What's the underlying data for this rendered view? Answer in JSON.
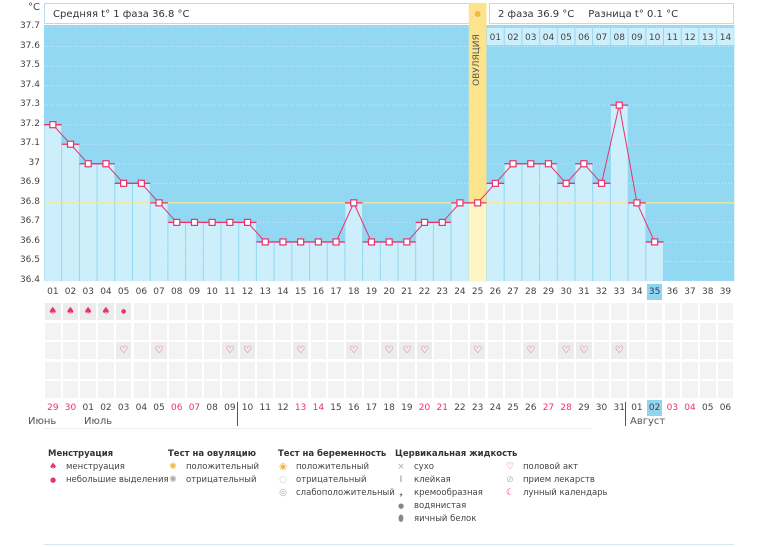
{
  "header": {
    "unit": "°C",
    "phase1": "Средняя t° 1 фаза 36.8 °C",
    "phase2": "2 фаза 36.9 °C",
    "difference": "Разница t° 0.1 °C",
    "ovulation_label": "ОВУЛЯЦИЯ"
  },
  "chart_data": {
    "type": "line",
    "y_ticks": [
      "37.7",
      "37.6",
      "37.5",
      "37.4",
      "37.3",
      "37.2",
      "37.1",
      "37",
      "36.9",
      "36.8",
      "36.7",
      "36.6",
      "36.5",
      "36.4"
    ],
    "ylim": [
      36.4,
      37.7
    ],
    "cycle_days": [
      "01",
      "02",
      "03",
      "04",
      "05",
      "06",
      "07",
      "08",
      "09",
      "10",
      "11",
      "12",
      "13",
      "14",
      "15",
      "16",
      "17",
      "18",
      "19",
      "20",
      "21",
      "22",
      "23",
      "24",
      "25",
      "26",
      "27",
      "28",
      "29",
      "30",
      "31",
      "32",
      "33",
      "34",
      "35",
      "36",
      "37",
      "38",
      "39"
    ],
    "temperatures": [
      37.2,
      37.1,
      37.0,
      37.0,
      36.9,
      36.9,
      36.8,
      36.7,
      36.7,
      36.7,
      36.7,
      36.7,
      36.6,
      36.6,
      36.6,
      36.6,
      36.6,
      36.8,
      36.6,
      36.6,
      36.6,
      36.7,
      36.7,
      36.8,
      36.8,
      36.9,
      37.0,
      37.0,
      37.0,
      36.9,
      37.0,
      36.9,
      37.3,
      36.8,
      36.6
    ],
    "coverline": 36.8,
    "ovulation_day": 25,
    "current_day": 35,
    "luteal_days": [
      "01",
      "02",
      "03",
      "04",
      "05",
      "06",
      "07",
      "08",
      "09",
      "10",
      "11",
      "12",
      "13",
      "14"
    ],
    "colors": {
      "background": "#93d8f2",
      "bar": "#cdeefb",
      "line": "#e8336b",
      "coverline": "#f5e98a",
      "ovulation": "#fbe48c"
    }
  },
  "rows": {
    "menstruation": {
      "full": [
        1,
        2,
        3,
        4
      ],
      "spotting": [
        5
      ]
    },
    "intercourse_days": [
      5,
      7,
      11,
      12,
      15,
      18,
      20,
      21,
      22,
      25,
      28,
      30,
      31,
      33
    ]
  },
  "calendar": {
    "dates": [
      "29",
      "30",
      "01",
      "02",
      "03",
      "04",
      "05",
      "06",
      "07",
      "08",
      "09",
      "10",
      "11",
      "12",
      "13",
      "14",
      "15",
      "16",
      "17",
      "18",
      "19",
      "20",
      "21",
      "22",
      "23",
      "24",
      "25",
      "26",
      "27",
      "28",
      "29",
      "30",
      "31",
      "01",
      "02",
      "03",
      "04",
      "05",
      "06"
    ],
    "weekend_index": [
      0,
      1,
      7,
      8,
      14,
      15,
      21,
      22,
      28,
      29,
      35,
      36
    ],
    "today_index": 34,
    "months": [
      "Июнь",
      "Июль",
      "Август"
    ]
  },
  "legend": {
    "menstruation": {
      "title": "Менструация",
      "items": [
        "менструация",
        "небольшие выделения"
      ]
    },
    "ovulation_test": {
      "title": "Тест на овуляцию",
      "items": [
        "положительный",
        "отрицательный"
      ]
    },
    "pregnancy_test": {
      "title": "Тест на беременность",
      "items": [
        "положительный",
        "отрицательный",
        "слабоположительный"
      ]
    },
    "cervical": {
      "title": "Цервикальная жидкость",
      "items": [
        "сухо",
        "клейкая",
        "кремообразная",
        "водянистая",
        "яичный белок"
      ]
    },
    "other": {
      "items": [
        "половой акт",
        "прием лекарств",
        "лунный календарь"
      ]
    }
  }
}
